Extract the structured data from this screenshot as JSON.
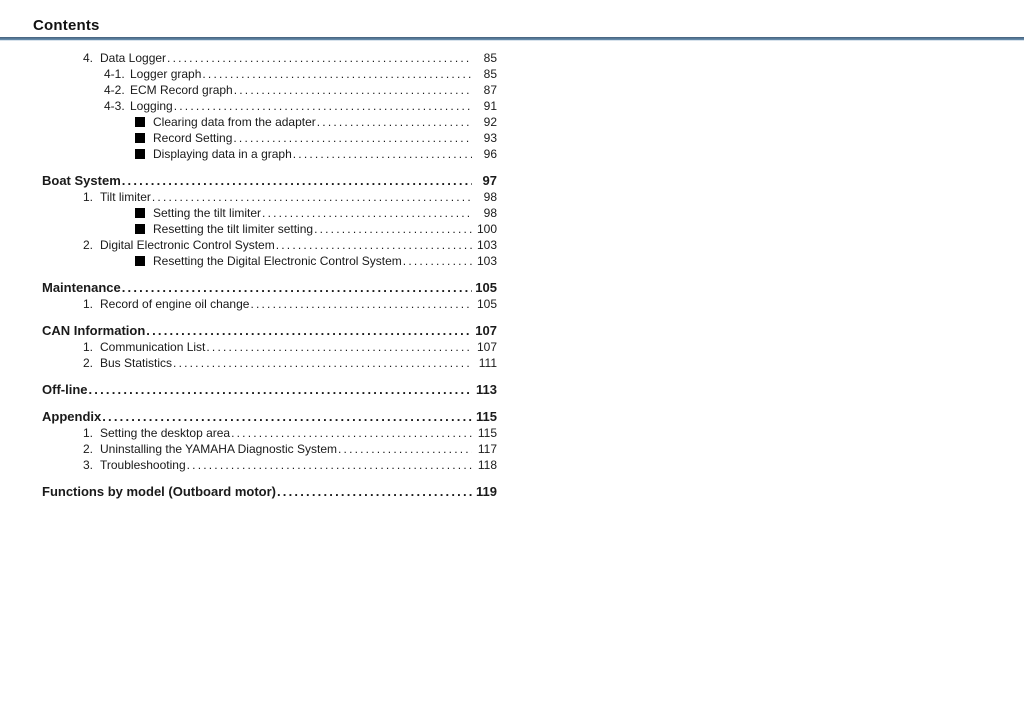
{
  "header": {
    "title": "Contents"
  },
  "colors": {
    "divider": "#4d7296",
    "text": "#1a1a1a",
    "background": "#ffffff"
  },
  "toc": [
    {
      "type": "item",
      "num": "4.",
      "label": "Data Logger",
      "page": "85"
    },
    {
      "type": "subitem",
      "num": "4-1.",
      "label": "Logger graph",
      "page": "85"
    },
    {
      "type": "subitem",
      "num": "4-2.",
      "label": "ECM Record graph",
      "page": "87"
    },
    {
      "type": "subitem",
      "num": "4-3.",
      "label": "Logging",
      "page": "91"
    },
    {
      "type": "bullet",
      "label": "Clearing data from the adapter",
      "page": "92"
    },
    {
      "type": "bullet",
      "label": "Record Setting",
      "page": "93"
    },
    {
      "type": "bullet",
      "label": "Displaying data in a graph",
      "page": "96"
    },
    {
      "type": "section",
      "label": "Boat System",
      "page": "97"
    },
    {
      "type": "item",
      "num": "1.",
      "label": "Tilt limiter",
      "page": "98"
    },
    {
      "type": "bullet",
      "label": "Setting the tilt limiter",
      "page": "98"
    },
    {
      "type": "bullet",
      "label": "Resetting the tilt limiter setting",
      "page": "100"
    },
    {
      "type": "item",
      "num": "2.",
      "label": "Digital Electronic Control System",
      "page": "103"
    },
    {
      "type": "bullet",
      "label": "Resetting the Digital Electronic Control System",
      "page": "103"
    },
    {
      "type": "section",
      "label": "Maintenance",
      "page": "105"
    },
    {
      "type": "item",
      "num": "1.",
      "label": "Record of engine oil change",
      "page": "105"
    },
    {
      "type": "section",
      "label": "CAN Information",
      "page": "107"
    },
    {
      "type": "item",
      "num": "1.",
      "label": "Communication List",
      "page": "107"
    },
    {
      "type": "item",
      "num": "2.",
      "label": "Bus Statistics",
      "page": "111"
    },
    {
      "type": "section",
      "label": "Off-line",
      "page": "113"
    },
    {
      "type": "section",
      "label": "Appendix",
      "page": "115"
    },
    {
      "type": "item",
      "num": "1.",
      "label": "Setting the desktop area",
      "page": "115"
    },
    {
      "type": "item",
      "num": "2.",
      "label": "Uninstalling the YAMAHA Diagnostic System",
      "page": "117"
    },
    {
      "type": "item",
      "num": "3.",
      "label": "Troubleshooting",
      "page": "118"
    },
    {
      "type": "section",
      "label": "Functions by model (Outboard motor)",
      "page": "119"
    }
  ]
}
